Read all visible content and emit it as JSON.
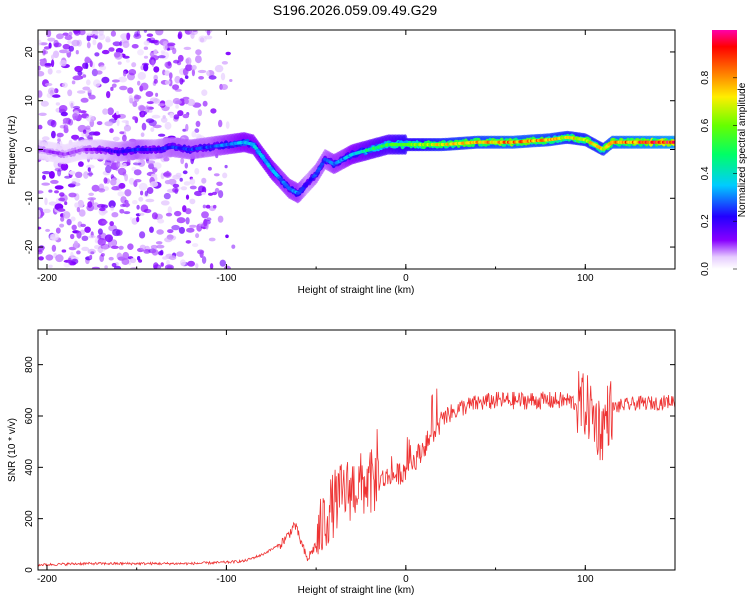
{
  "chart_data": [
    {
      "type": "heatmap",
      "title": "S196.2026.059.09.49.G29",
      "xlabel": "Height of straight line (km)",
      "ylabel": "Frequency (Hz)",
      "xlim": [
        -205,
        150
      ],
      "ylim": [
        -24.5,
        24.5
      ],
      "xticks": [
        -200,
        -100,
        0,
        100
      ],
      "xtick_labels": [
        "-200",
        "-100",
        "0",
        "100"
      ],
      "yticks": [
        -20,
        -10,
        0,
        10,
        20
      ],
      "ytick_labels": [
        "-20",
        "-10",
        "0",
        "10",
        "20"
      ],
      "colorbar": {
        "label": "Normalized spectral amplitude",
        "range": [
          0,
          1
        ],
        "ticks": [
          0.0,
          0.2,
          0.4,
          0.6,
          0.8
        ],
        "tick_labels": [
          "0.0",
          "0.2",
          "0.4",
          "0.6",
          "0.8"
        ]
      },
      "ridge": {
        "x": [
          -205,
          -190,
          -180,
          -170,
          -160,
          -150,
          -140,
          -130,
          -120,
          -110,
          -100,
          -90,
          -85,
          -80,
          -75,
          -70,
          -65,
          -60,
          -55,
          -50,
          -45,
          -40,
          -35,
          -30,
          -25,
          -20,
          -15,
          -10,
          -5,
          0,
          20,
          40,
          60,
          80,
          90,
          100,
          105,
          110,
          115,
          130,
          150
        ],
        "y": [
          0,
          -1,
          0,
          0,
          -0.5,
          0,
          0,
          0.5,
          0,
          0.5,
          1,
          1.5,
          1,
          -1.5,
          -4,
          -6,
          -8,
          -9,
          -7,
          -5,
          -2,
          -3,
          -2,
          -1,
          -0.5,
          0,
          0.5,
          1,
          1,
          1,
          1,
          1.5,
          1.5,
          2,
          2.5,
          2,
          1,
          0,
          1.5,
          1.5,
          1.5
        ],
        "amp": [
          0.1,
          0.1,
          0.1,
          0.15,
          0.2,
          0.25,
          0.2,
          0.25,
          0.25,
          0.25,
          0.3,
          0.35,
          0.35,
          0.35,
          0.35,
          0.3,
          0.3,
          0.3,
          0.2,
          0.25,
          0.25,
          0.3,
          0.3,
          0.35,
          0.4,
          0.45,
          0.5,
          0.5,
          0.55,
          0.6,
          0.7,
          0.75,
          0.8,
          0.75,
          0.7,
          0.7,
          0.7,
          0.7,
          0.8,
          0.85,
          0.9
        ]
      }
    },
    {
      "type": "line",
      "title": "",
      "xlabel": "Height of straight line (km)",
      "ylabel": "SNR (10 * v/v)",
      "xlim": [
        -205,
        150
      ],
      "ylim": [
        0,
        935
      ],
      "xticks": [
        -200,
        -100,
        0,
        100
      ],
      "xtick_labels": [
        "-200",
        "-100",
        "0",
        "100"
      ],
      "yticks": [
        0,
        200,
        400,
        600,
        800
      ],
      "ytick_labels": [
        "0",
        "200",
        "400",
        "600",
        "800"
      ],
      "series": [
        {
          "name": "SNR",
          "color": "#ee3333",
          "x": [
            -205,
            -180,
            -150,
            -120,
            -100,
            -90,
            -80,
            -70,
            -65,
            -62,
            -58,
            -55,
            -50,
            -45,
            -40,
            -35,
            -30,
            -25,
            -20,
            -15,
            -10,
            -5,
            0,
            5,
            10,
            15,
            20,
            25,
            30,
            35,
            40,
            50,
            60,
            70,
            80,
            90,
            95,
            100,
            103,
            106,
            109,
            112,
            115,
            120,
            130,
            140,
            150
          ],
          "y": [
            20,
            25,
            25,
            25,
            30,
            35,
            60,
            100,
            140,
            180,
            100,
            40,
            100,
            200,
            260,
            300,
            320,
            330,
            340,
            350,
            360,
            370,
            390,
            430,
            480,
            530,
            580,
            610,
            630,
            640,
            650,
            660,
            660,
            660,
            660,
            660,
            650,
            640,
            620,
            580,
            540,
            600,
            630,
            640,
            650,
            650,
            660
          ]
        }
      ]
    }
  ]
}
